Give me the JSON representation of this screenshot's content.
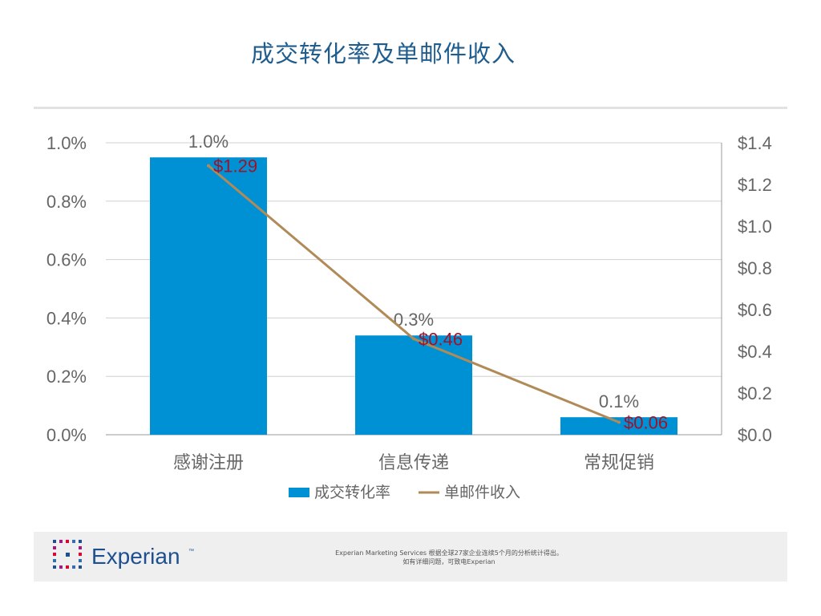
{
  "title": "成交转化率及单邮件收入",
  "colors": {
    "title": "#1f5d8e",
    "bar": "#0091d5",
    "line": "#b08a57",
    "line_label": "#a0122a",
    "axis_text": "#666666",
    "grid": "#d0d0d0",
    "logo_text": "#1d4f91",
    "logo_dots": [
      "#1d4f91",
      "#a3197d",
      "#e4032e",
      "#2f6fb7"
    ]
  },
  "chart_data": {
    "type": "bar",
    "title": "",
    "categories": [
      "感谢注册",
      "信息传递",
      "常规促销"
    ],
    "series": [
      {
        "name": "成交转化率",
        "type": "bar",
        "axis": "left",
        "values": [
          0.95,
          0.34,
          0.06
        ],
        "labels": [
          "1.0%",
          "0.3%",
          "0.1%"
        ],
        "unit": "%"
      },
      {
        "name": "单邮件收入",
        "type": "line",
        "axis": "right",
        "values": [
          1.29,
          0.46,
          0.06
        ],
        "labels": [
          "$1.29",
          "$0.46",
          "$0.06"
        ],
        "unit": "$"
      }
    ],
    "left_axis": {
      "ylim": [
        0,
        1.0
      ],
      "ticks": [
        "0.0%",
        "0.2%",
        "0.4%",
        "0.6%",
        "0.8%",
        "1.0%"
      ]
    },
    "right_axis": {
      "ylim": [
        0,
        1.4
      ],
      "ticks": [
        "$0.0",
        "$0.2",
        "$0.4",
        "$0.6",
        "$0.8",
        "$1.0",
        "$1.2",
        "$1.4"
      ]
    },
    "grid": true,
    "legend": "bottom"
  },
  "footer": {
    "logo_text": "Experian",
    "logo_tm": "™",
    "note_line1": "Experian Marketing Services 根据全球27家企业连续5个月的分析统计得出。",
    "note_line2": "如有详细问题，可致电Experian"
  }
}
